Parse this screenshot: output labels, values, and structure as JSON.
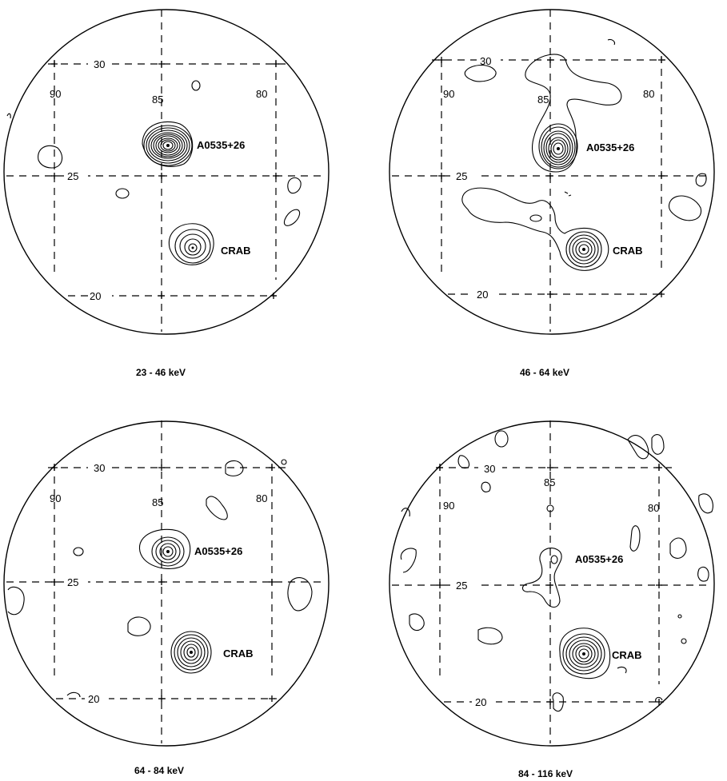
{
  "panels": [
    {
      "caption": "23 - 46 keV",
      "dec_labels": [
        "30",
        "25",
        "20"
      ],
      "ra_labels": [
        "90",
        "85",
        "80"
      ],
      "sources": [
        "A0535+26",
        "CRAB"
      ]
    },
    {
      "caption": "46 - 64 keV",
      "dec_labels": [
        "30",
        "25",
        "20"
      ],
      "ra_labels": [
        "90",
        "85",
        "80"
      ],
      "sources": [
        "A0535+26",
        "CRAB"
      ]
    },
    {
      "caption": "64 - 84 keV",
      "dec_labels": [
        "30",
        "25",
        "20"
      ],
      "ra_labels": [
        "90",
        "85",
        "80"
      ],
      "sources": [
        "A0535+26",
        "CRAB"
      ]
    },
    {
      "caption": "84 - 116 keV",
      "dec_labels": [
        "30",
        "25",
        "20"
      ],
      "ra_labels": [
        "90",
        "85",
        "80"
      ],
      "sources": [
        "A0535+26",
        "CRAB"
      ]
    }
  ]
}
